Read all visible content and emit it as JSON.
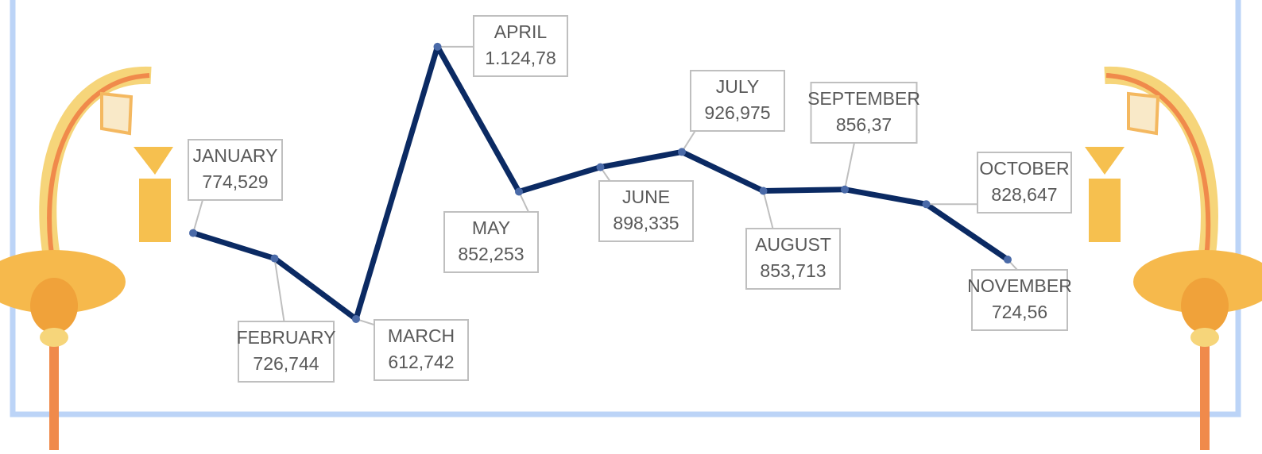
{
  "chart_data": {
    "type": "line",
    "categories": [
      "JANUARY",
      "FEBRUARY",
      "MARCH",
      "APRIL",
      "MAY",
      "JUNE",
      "JULY",
      "AUGUST",
      "SEPTEMBER",
      "OCTOBER",
      "NOVEMBER"
    ],
    "values": [
      774.529,
      726.744,
      612.742,
      1124.78,
      852.253,
      898.335,
      926.975,
      853.713,
      856.37,
      828.647,
      724.56
    ],
    "value_labels": [
      "774,529",
      "726,744",
      "612,742",
      "1.124,78",
      "852,253",
      "898,335",
      "926,975",
      "853,713",
      "856,37",
      "828,647",
      "724,56"
    ],
    "color": "#0b2a63"
  }
}
